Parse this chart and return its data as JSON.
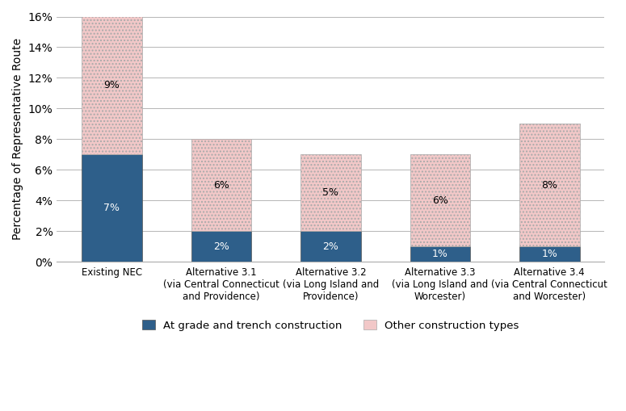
{
  "categories": [
    "Existing NEC",
    "Alternative 3.1\n(via Central Connecticut\nand Providence)",
    "Alternative 3.2\n(via Long Island and\nProvidence)",
    "Alternative 3.3\n(via Long Island and\nWorcester)",
    "Alternative 3.4\n(via Central Connecticut\nand Worcester)"
  ],
  "at_grade": [
    7,
    2,
    2,
    1,
    1
  ],
  "other": [
    9,
    6,
    5,
    6,
    8
  ],
  "at_grade_labels": [
    "7%",
    "2%",
    "2%",
    "1%",
    "1%"
  ],
  "other_labels": [
    "9%",
    "6%",
    "5%",
    "6%",
    "8%"
  ],
  "at_grade_color": "#2E5F8A",
  "other_color": "#F2C8C8",
  "other_hatch": "....",
  "ylabel": "Percentage of Representative Route",
  "ylim": [
    0,
    16
  ],
  "yticks": [
    0,
    2,
    4,
    6,
    8,
    10,
    12,
    14,
    16
  ],
  "ytick_labels": [
    "0%",
    "2%",
    "4%",
    "6%",
    "8%",
    "10%",
    "12%",
    "14%",
    "16%"
  ],
  "legend_at_grade": "At grade and trench construction",
  "legend_other": "Other construction types",
  "bar_width": 0.55,
  "figsize": [
    7.75,
    5.09
  ],
  "dpi": 100
}
